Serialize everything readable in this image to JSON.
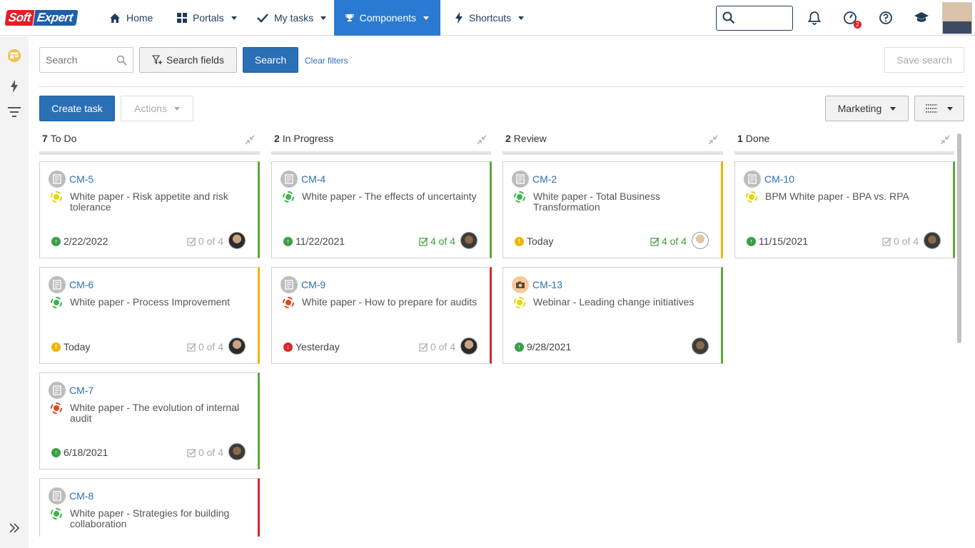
{
  "brand": {
    "part1": "Soft",
    "part2": "Expert"
  },
  "nav": {
    "home": "Home",
    "portals": "Portals",
    "my_tasks": "My tasks",
    "components": "Components",
    "shortcuts": "Shortcuts",
    "notification_badge": "2"
  },
  "filters": {
    "search_placeholder": "Search",
    "search_fields": "Search fields",
    "search_button": "Search",
    "clear_filters": "Clear filters",
    "save_search": "Save search"
  },
  "toolbar": {
    "create_task": "Create task",
    "actions": "Actions",
    "board_select": "Marketing"
  },
  "columns": [
    {
      "count": "7",
      "name": "To Do",
      "cards": [
        {
          "code": "CM-5",
          "title": "White paper - Risk appetite and risk tolerance",
          "date": "2/22/2022",
          "checklist": "0 of 4"
        },
        {
          "code": "CM-6",
          "title": "White paper - Process Improvement",
          "date": "Today",
          "checklist": "0 of 4"
        },
        {
          "code": "CM-7",
          "title": "White paper - The evolution of internal audit",
          "date": "6/18/2021",
          "checklist": "0 of 4"
        },
        {
          "code": "CM-8",
          "title": "White paper - Strategies for building collaboration"
        }
      ]
    },
    {
      "count": "2",
      "name": "In Progress",
      "cards": [
        {
          "code": "CM-4",
          "title": "White paper - The effects of uncertainty",
          "date": "11/22/2021",
          "checklist": "4 of 4"
        },
        {
          "code": "CM-9",
          "title": "White paper - How to prepare for audits",
          "date": "Yesterday",
          "checklist": "0 of 4"
        }
      ]
    },
    {
      "count": "2",
      "name": "Review",
      "cards": [
        {
          "code": "CM-2",
          "title": "White paper - Total Business Transformation",
          "date": "Today",
          "checklist": "4 of 4"
        },
        {
          "code": "CM-13",
          "title": "Webinar - Leading change initiatives",
          "date": "9/28/2021"
        }
      ]
    },
    {
      "count": "1",
      "name": "Done",
      "cards": [
        {
          "code": "CM-10",
          "title": "BPM White paper - BPA vs. RPA",
          "date": "11/15/2021",
          "checklist": "0 of 4"
        }
      ]
    }
  ],
  "colors": {
    "accent": "#2b7ad1",
    "button_blue": "#2b6fb5",
    "green": "#5aa83a",
    "yellow": "#f0b400",
    "red": "#d9262c"
  }
}
